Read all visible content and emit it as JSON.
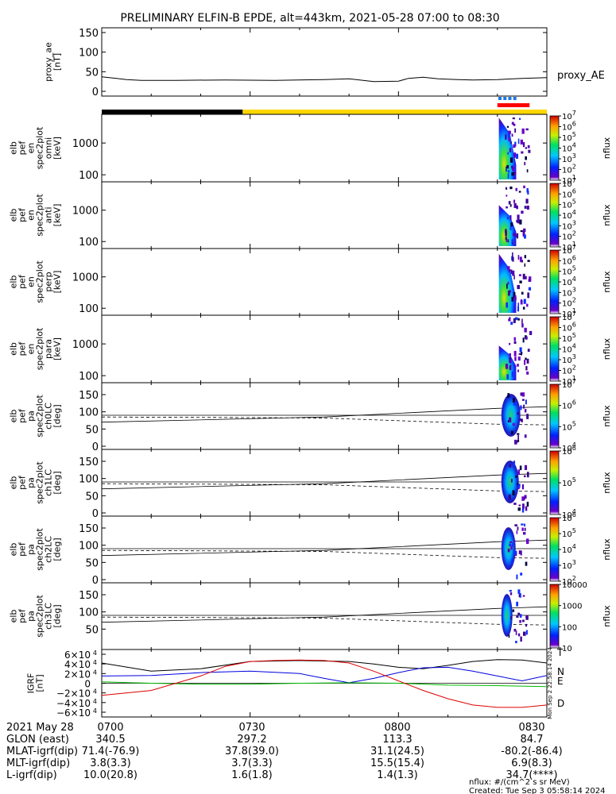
{
  "title": "PRELIMINARY ELFIN-B EPDE, alt=443km, 2021-05-28 07:00 to 08:30",
  "colors": {
    "bar_shadow": "#000000",
    "bar_sunlit": "#ffd700",
    "science_zone": "#ff0000",
    "science_marker": "#1e78e6",
    "line_black": "#000000",
    "line_blue": "#0000dd",
    "line_green": "#00bb00",
    "line_red": "#dd0000"
  },
  "chart_data": [
    {
      "type": "line",
      "id": "proxy_ae",
      "ylabel_lines": [
        "proxy_ae",
        "[nT]"
      ],
      "series_label": "proxy_AE",
      "ylim": [
        0,
        150
      ],
      "yticks": [
        "0",
        "50",
        "100",
        "150"
      ],
      "x_minutes": [
        0,
        3,
        5,
        8,
        15,
        25,
        35,
        45,
        50,
        55,
        60,
        62,
        65,
        68,
        70,
        72,
        75,
        80,
        85,
        90
      ],
      "values": [
        37,
        33,
        30,
        28,
        28,
        29,
        28,
        30,
        32,
        25,
        26,
        33,
        36,
        32,
        31,
        30,
        29,
        30,
        33,
        35
      ]
    },
    {
      "type": "heatmap",
      "id": "spec_en_omni",
      "ylabel_lines": [
        "elb",
        "pef",
        "en",
        "spec2plot",
        "omni",
        "[keV]"
      ],
      "yticks": [
        "100",
        "1000"
      ],
      "colorbar": {
        "label": "nflux",
        "ticks": [
          "10",
          "10",
          "10",
          "10",
          "10",
          "10",
          "10"
        ],
        "exponents": [
          "1",
          "2",
          "3",
          "4",
          "5",
          "6",
          "7"
        ]
      }
    },
    {
      "type": "heatmap",
      "id": "spec_en_anti",
      "ylabel_lines": [
        "elb",
        "pef",
        "en",
        "spec2plot",
        "anti",
        "[keV]"
      ],
      "yticks": [
        "100",
        "1000"
      ],
      "colorbar": {
        "label": "nflux",
        "ticks": [
          "10",
          "10",
          "10",
          "10",
          "10",
          "10",
          "10"
        ],
        "exponents": [
          "1",
          "2",
          "3",
          "4",
          "5",
          "6",
          "7"
        ]
      }
    },
    {
      "type": "heatmap",
      "id": "spec_en_perp",
      "ylabel_lines": [
        "elb",
        "pef",
        "en",
        "spec2plot",
        "perp",
        "[keV]"
      ],
      "yticks": [
        "100",
        "1000"
      ],
      "colorbar": {
        "label": "nflux",
        "ticks": [
          "10",
          "10",
          "10",
          "10",
          "10",
          "10",
          "10"
        ],
        "exponents": [
          "1",
          "2",
          "3",
          "4",
          "5",
          "6",
          "7"
        ]
      }
    },
    {
      "type": "heatmap",
      "id": "spec_en_para",
      "ylabel_lines": [
        "elb",
        "pef",
        "en",
        "spec2plot",
        "para",
        "[keV]"
      ],
      "yticks": [
        "100",
        "1000"
      ],
      "colorbar": {
        "label": "nflux",
        "ticks": [
          "10",
          "10",
          "10",
          "10",
          "10",
          "10",
          "10"
        ],
        "exponents": [
          "1",
          "2",
          "3",
          "4",
          "5",
          "6",
          "7"
        ]
      }
    },
    {
      "type": "heatmap",
      "id": "spec_pa_ch0",
      "ylabel_lines": [
        "elb",
        "pef",
        "pa",
        "spec2plot",
        "ch0LC",
        "[deg]"
      ],
      "yticks": [
        "0",
        "50",
        "100",
        "150"
      ],
      "colorbar": {
        "label": "nflux",
        "ticks": [
          "10",
          "10",
          "10",
          "10"
        ],
        "exponents": [
          "4",
          "5",
          "6",
          "7"
        ]
      }
    },
    {
      "type": "heatmap",
      "id": "spec_pa_ch1",
      "ylabel_lines": [
        "elb",
        "pef",
        "pa",
        "spec2plot",
        "ch1LC",
        "[deg]"
      ],
      "yticks": [
        "0",
        "50",
        "100",
        "150"
      ],
      "colorbar": {
        "label": "nflux",
        "ticks": [
          "10",
          "10",
          "10"
        ],
        "exponents": [
          "4",
          "5",
          "6"
        ]
      }
    },
    {
      "type": "heatmap",
      "id": "spec_pa_ch2",
      "ylabel_lines": [
        "elb",
        "pef",
        "pa",
        "spec2plot",
        "ch2LC",
        "[deg]"
      ],
      "yticks": [
        "0",
        "50",
        "100",
        "150"
      ],
      "colorbar": {
        "label": "nflux",
        "ticks": [
          "10",
          "10",
          "10",
          "10",
          "10"
        ],
        "exponents": [
          "2",
          "3",
          "4",
          "5",
          "6"
        ]
      }
    },
    {
      "type": "heatmap",
      "id": "spec_pa_ch3",
      "ylabel_lines": [
        "elb",
        "pef",
        "pa",
        "spec2plot",
        "ch3LC",
        "[deg]"
      ],
      "yticks": [
        "50",
        "100",
        "150"
      ],
      "colorbar": {
        "label": "nflux",
        "ticks": [
          "10",
          "100",
          "1000",
          "10000"
        ],
        "exponents": [
          "",
          "",
          "",
          ""
        ]
      }
    },
    {
      "type": "line",
      "id": "igrf",
      "ylabel_lines": [
        "IGRF",
        "[nT]"
      ],
      "ylim": [
        -60000,
        60000
      ],
      "yticks": [
        {
          "mant": "−6×10",
          "exp": "4",
          "value": -60000
        },
        {
          "mant": "−4×10",
          "exp": "4",
          "value": -40000
        },
        {
          "mant": "−2×10",
          "exp": "4",
          "value": -20000
        },
        {
          "mant": "0",
          "exp": "",
          "value": 0
        },
        {
          "mant": "2×10",
          "exp": "4",
          "value": 20000
        },
        {
          "mant": "4×10",
          "exp": "4",
          "value": 40000
        },
        {
          "mant": "6×10",
          "exp": "4",
          "value": 60000
        }
      ],
      "series": [
        {
          "name": "T",
          "color": "#000000",
          "x_minutes": [
            0,
            10,
            20,
            30,
            40,
            50,
            55,
            60,
            65,
            70,
            75,
            80,
            85,
            90
          ],
          "values": [
            42000,
            25000,
            30000,
            45000,
            47000,
            45000,
            40000,
            33000,
            30000,
            37000,
            45000,
            49000,
            48000,
            42000
          ]
        },
        {
          "name": "N",
          "color": "#0000dd",
          "x_minutes": [
            0,
            10,
            20,
            30,
            40,
            45,
            50,
            55,
            60,
            65,
            70,
            75,
            80,
            85,
            90
          ],
          "values": [
            15000,
            16000,
            22000,
            25000,
            20000,
            10000,
            1000,
            10000,
            22000,
            32000,
            33000,
            25000,
            15000,
            5000,
            16000
          ]
        },
        {
          "name": "E",
          "color": "#00bb00",
          "x_minutes": [
            0,
            10,
            20,
            30,
            40,
            50,
            60,
            70,
            80,
            90
          ],
          "values": [
            3000,
            0,
            -2000,
            -2000,
            0,
            1000,
            0,
            -4000,
            -5000,
            -7000
          ]
        },
        {
          "name": "D",
          "color": "#dd0000",
          "x_minutes": [
            0,
            10,
            20,
            25,
            30,
            35,
            40,
            45,
            50,
            55,
            60,
            65,
            70,
            75,
            80,
            85,
            90
          ],
          "values": [
            -25000,
            -15000,
            15000,
            35000,
            45000,
            47000,
            48000,
            47000,
            42000,
            25000,
            5000,
            -15000,
            -32000,
            -45000,
            -50000,
            -50000,
            -45000
          ]
        }
      ]
    }
  ],
  "ephemeris": {
    "rows": [
      {
        "label": "2021 May 28",
        "values": [
          "0700",
          "0730",
          "0800",
          "0830"
        ]
      },
      {
        "label": "GLON (east)",
        "values": [
          "340.5",
          "297.2",
          "113.3",
          "84.7"
        ]
      },
      {
        "label": "MLAT-igrf(dip)",
        "values": [
          "71.4(-76.9)",
          "37.8(39.0)",
          "31.1(24.5)",
          "-80.2(-86.4)"
        ]
      },
      {
        "label": "MLT-igrf(dip)",
        "values": [
          "3.8(3.3)",
          "3.7(3.3)",
          "15.5(15.4)",
          "6.9(8.3)"
        ]
      },
      {
        "label": "L-igrf(dip)",
        "values": [
          "10.0(20.8)",
          "1.6(1.8)",
          "1.4(1.3)",
          "34.7(****)"
        ]
      }
    ],
    "units_note": "nflux: #/(cm^2 s sr MeV)",
    "created": "Created: Tue Sep  3 05:58:14 2024",
    "side_stamp": "Mon Sep  2 22:58:14 2024"
  }
}
